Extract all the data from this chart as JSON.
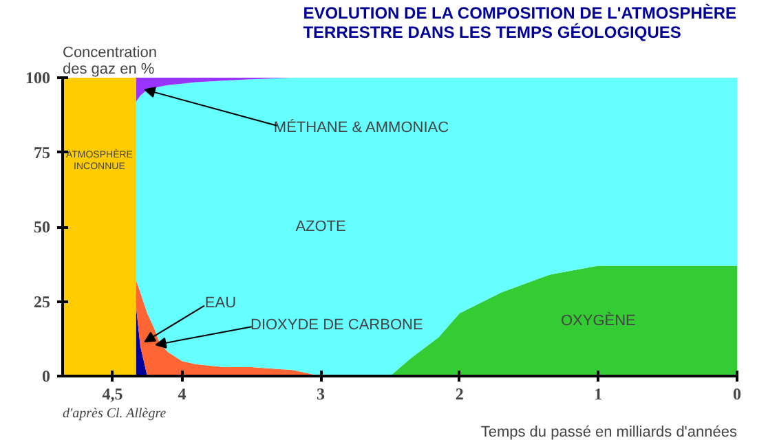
{
  "chart_data": {
    "type": "area",
    "stacked": true,
    "title": "EVOLUTION DE LA COMPOSITION DE L'ATMOSPHÈRE\nTERRESTRE DANS LES TEMPS GÉOLOGIQUES",
    "xlabel": "Temps du passé en milliards d'années",
    "ylabel": "Concentration des gaz en %",
    "x": [
      4.33,
      4.3,
      4.25,
      4.2,
      4.16,
      4.1,
      4.0,
      3.9,
      3.7,
      3.5,
      3.2,
      3.0,
      2.5,
      2.35,
      2.15,
      2.0,
      1.7,
      1.35,
      1.0,
      0.5,
      0
    ],
    "series": [
      {
        "name": "EAU",
        "color": "#000099",
        "values": [
          23,
          10,
          0,
          0,
          0,
          0,
          0,
          0,
          0,
          0,
          0,
          0,
          0,
          0,
          0,
          0,
          0,
          0,
          0,
          0,
          0
        ]
      },
      {
        "name": "DIOXYDE DE CARBONE",
        "color": "#ff6633",
        "values": [
          9,
          18,
          21,
          16,
          11,
          8,
          5,
          4,
          3,
          3,
          2,
          0,
          0,
          0,
          0,
          0,
          0,
          0,
          0,
          0,
          0
        ]
      },
      {
        "name": "OXYGÈNE",
        "color": "#33cc33",
        "values": [
          0,
          0,
          0,
          0,
          0,
          0,
          0,
          0,
          0,
          0,
          0,
          0,
          0,
          6,
          13,
          21,
          28,
          34,
          37,
          37,
          37
        ]
      },
      {
        "name": "AZOTE",
        "color": "#66ffff",
        "values": [
          60,
          66,
          75,
          80.5,
          86,
          89.5,
          93,
          94.5,
          96,
          96.5,
          98,
          100,
          100,
          94,
          87,
          79,
          72,
          66,
          63,
          63,
          63
        ]
      },
      {
        "name": "MÉTHANE & AMMONIAC",
        "color": "#9933ff",
        "values": [
          8,
          6,
          4,
          3.5,
          3,
          2.5,
          2,
          1.5,
          1,
          0.5,
          0,
          0,
          0,
          0,
          0,
          0,
          0,
          0,
          0,
          0,
          0
        ]
      }
    ],
    "bands": [
      {
        "axis": "x",
        "from": 4.86,
        "to": 4.33,
        "label": "ATMOSPHÈRE INCONNUE",
        "color": "#ffcc00"
      }
    ],
    "xlim": [
      4.86,
      0
    ],
    "ylim": [
      0,
      100
    ],
    "xticks": [
      {
        "value": 4.5,
        "label": "4,5"
      },
      4,
      3,
      2,
      1,
      0
    ],
    "yticks": [
      0,
      25,
      50,
      75,
      100
    ],
    "annotations": [
      "d'après Cl. Allègre"
    ],
    "grid": false
  }
}
